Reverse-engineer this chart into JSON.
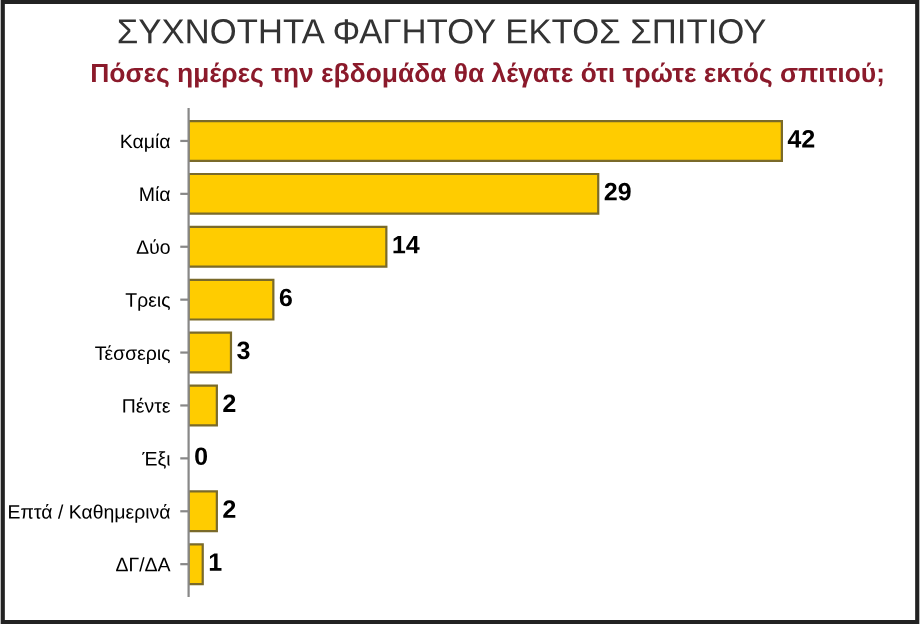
{
  "chart_data": {
    "type": "bar",
    "orientation": "horizontal",
    "title": "ΣΥΧΝΟΤΗΤΑ ΦΑΓΗΤΟΥ ΕΚΤΟΣ ΣΠΙΤΙΟΥ",
    "subtitle": "Πόσες ημέρες την εβδομάδα θα λέγατε ότι τρώτε εκτός σπιτιού;",
    "categories": [
      "Καμία",
      "Μία",
      "Δύο",
      "Τρεις",
      "Τέσσερις",
      "Πέντε",
      "Έξι",
      "Επτά / Καθημερινά",
      "ΔΓ/ΔΑ"
    ],
    "values": [
      42,
      29,
      14,
      6,
      3,
      2,
      0,
      2,
      1
    ],
    "color": "#ffcc00",
    "data_labels": true,
    "grid": false,
    "legend": false
  }
}
